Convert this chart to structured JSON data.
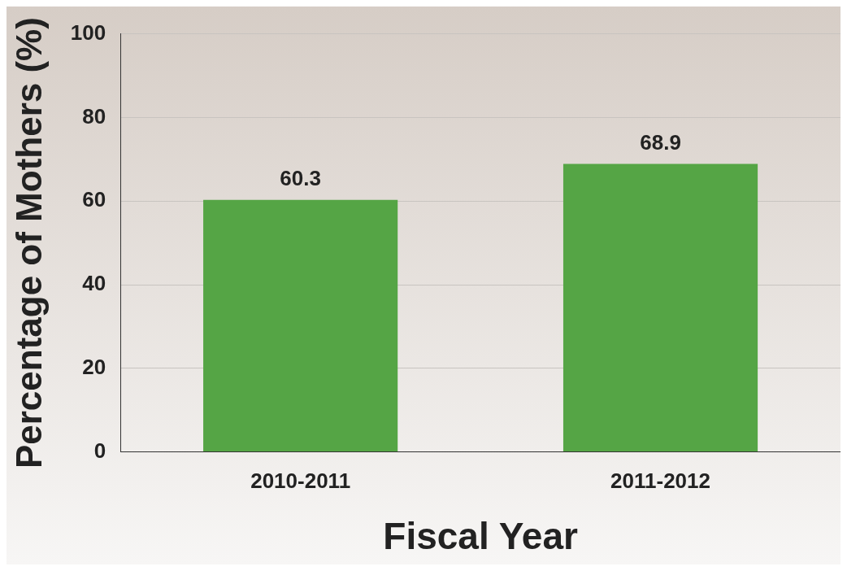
{
  "chart_data": {
    "type": "bar",
    "categories": [
      "2010-2011",
      "2011-2012"
    ],
    "values": [
      60.3,
      68.9
    ],
    "color": "#55a545",
    "xlabel": "Fiscal Year",
    "ylabel": "Percentage of Mothers (%)",
    "ylim": [
      0,
      100
    ],
    "yticks": [
      0,
      20,
      40,
      60,
      80,
      100
    ],
    "grid": "y",
    "data_labels": true
  }
}
